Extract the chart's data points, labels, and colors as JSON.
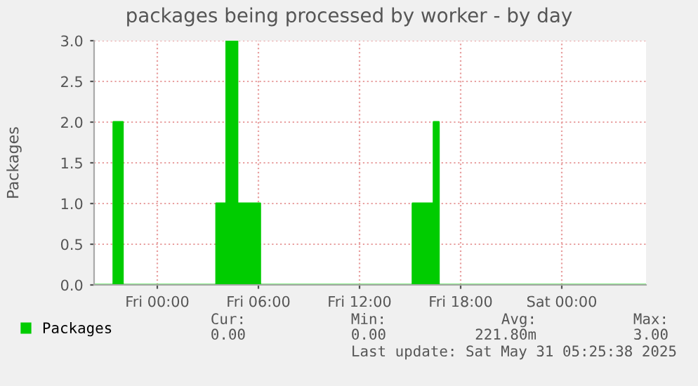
{
  "chart_data": {
    "type": "area",
    "title": "packages being processed by worker - by day",
    "ylabel": "Packages",
    "x": [
      "2025-05-29T20:15",
      "2025-05-29T21:24",
      "2025-05-29T21:24",
      "2025-05-29T21:57",
      "2025-05-29T21:57",
      "2025-05-30T03:30",
      "2025-05-30T03:30",
      "2025-05-30T04:06",
      "2025-05-30T04:06",
      "2025-05-30T04:45",
      "2025-05-30T04:45",
      "2025-05-30T06:06",
      "2025-05-30T06:06",
      "2025-05-30T15:09",
      "2025-05-30T15:09",
      "2025-05-30T16:24",
      "2025-05-30T16:24",
      "2025-05-30T16:42",
      "2025-05-30T16:42",
      "2025-05-31T05:00"
    ],
    "series": [
      {
        "name": "Packages",
        "color": "#00cc00",
        "values": [
          0,
          0,
          2,
          2,
          0,
          0,
          1,
          1,
          3,
          3,
          1,
          1,
          0,
          0,
          1,
          1,
          2,
          2,
          0,
          0
        ]
      }
    ],
    "xlim": [
      "2025-05-29T20:15",
      "2025-05-31T05:00"
    ],
    "xticks": [
      {
        "value": "2025-05-30T00:00",
        "label": "Fri 00:00"
      },
      {
        "value": "2025-05-30T06:00",
        "label": "Fri 06:00"
      },
      {
        "value": "2025-05-30T12:00",
        "label": "Fri 12:00"
      },
      {
        "value": "2025-05-30T18:00",
        "label": "Fri 18:00"
      },
      {
        "value": "2025-05-31T00:00",
        "label": "Sat 00:00"
      }
    ],
    "ylim": [
      0,
      3
    ],
    "yticks": [
      {
        "value": 0,
        "label": "0.0"
      },
      {
        "value": 0.5,
        "label": "0.5"
      },
      {
        "value": 1,
        "label": "1.0"
      },
      {
        "value": 1.5,
        "label": "1.5"
      },
      {
        "value": 2,
        "label": "2.0"
      },
      {
        "value": 2.5,
        "label": "2.5"
      },
      {
        "value": 3,
        "label": "3.0"
      }
    ],
    "grid": true,
    "legend": "bottom",
    "annotations": [
      "Cur:",
      "0.00",
      "Min:",
      "0.00",
      "Avg:",
      "221.80m",
      "Max:",
      "3.00",
      "Last update: Sat May 31 05:25:38 2025"
    ]
  }
}
